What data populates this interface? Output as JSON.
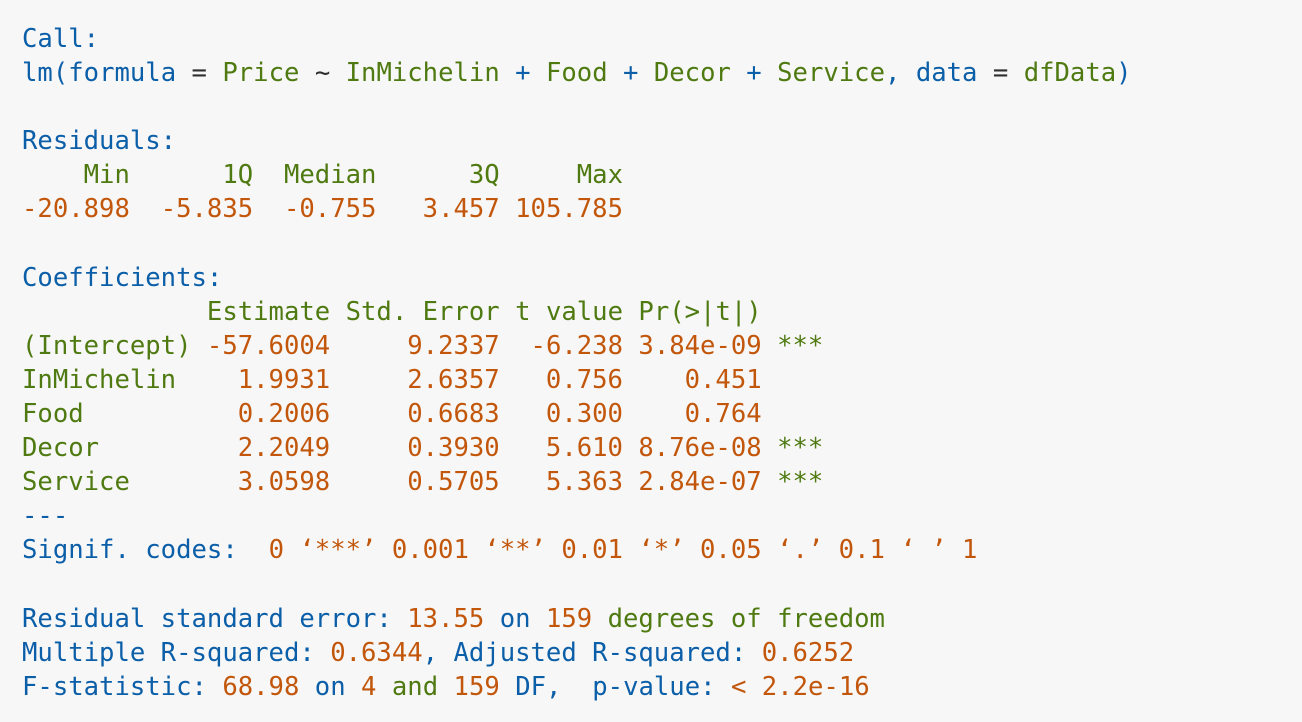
{
  "call": {
    "header": "Call:",
    "fn": "lm",
    "arg_formula": "formula",
    "response": "Price",
    "predictors": [
      "InMichelin",
      "Food",
      "Decor",
      "Service"
    ],
    "arg_data": "data",
    "data_name": "dfData"
  },
  "residuals": {
    "header": "Residuals:",
    "labels": [
      "Min",
      "1Q",
      "Median",
      "3Q",
      "Max"
    ],
    "values": [
      "-20.898",
      "-5.835",
      "-0.755",
      "3.457",
      "105.785"
    ]
  },
  "coefficients": {
    "header": "Coefficients:",
    "columns": [
      "Estimate",
      "Std. Error",
      "t value",
      "Pr(>|t|)"
    ],
    "rows": [
      {
        "term": "(Intercept)",
        "estimate": "-57.6004",
        "std_error": "9.2337",
        "t_value": "-6.238",
        "p_value": "3.84e-09",
        "stars": "***"
      },
      {
        "term": "InMichelin",
        "estimate": "1.9931",
        "std_error": "2.6357",
        "t_value": "0.756",
        "p_value": "0.451",
        "stars": ""
      },
      {
        "term": "Food",
        "estimate": "0.2006",
        "std_error": "0.6683",
        "t_value": "0.300",
        "p_value": "0.764",
        "stars": ""
      },
      {
        "term": "Decor",
        "estimate": "2.2049",
        "std_error": "0.3930",
        "t_value": "5.610",
        "p_value": "8.76e-08",
        "stars": "***"
      },
      {
        "term": "Service",
        "estimate": "3.0598",
        "std_error": "0.5705",
        "t_value": "5.363",
        "p_value": "2.84e-07",
        "stars": "***"
      }
    ],
    "separator": "---",
    "signif_label": "Signif. codes:",
    "signif_codes": "0 ‘***’ 0.001 ‘**’ 0.01 ‘*’ 0.05 ‘.’ 0.1 ‘ ’ 1"
  },
  "fit": {
    "rse_label": "Residual standard error:",
    "rse_value": "13.55",
    "on_word": "on",
    "df_value": "159",
    "df_text": "degrees of freedom",
    "multiple_r2_label": "Multiple R-squared:",
    "multiple_r2_value": "0.6344",
    "adjusted_r2_label": "Adjusted R-squared:",
    "adjusted_r2_value": "0.6252",
    "f_label": "F-statistic:",
    "f_value": "68.98",
    "f_on": "on",
    "f_df1": "4",
    "f_and": "and",
    "f_df2": "159",
    "f_df_label": "DF,",
    "p_label": "p-value:",
    "p_value": "< 2.2e-16"
  },
  "colors": {
    "background": "#f7f7f7",
    "blue": "#0b5ea8",
    "green": "#4f7a11",
    "orange": "#c2570c"
  }
}
